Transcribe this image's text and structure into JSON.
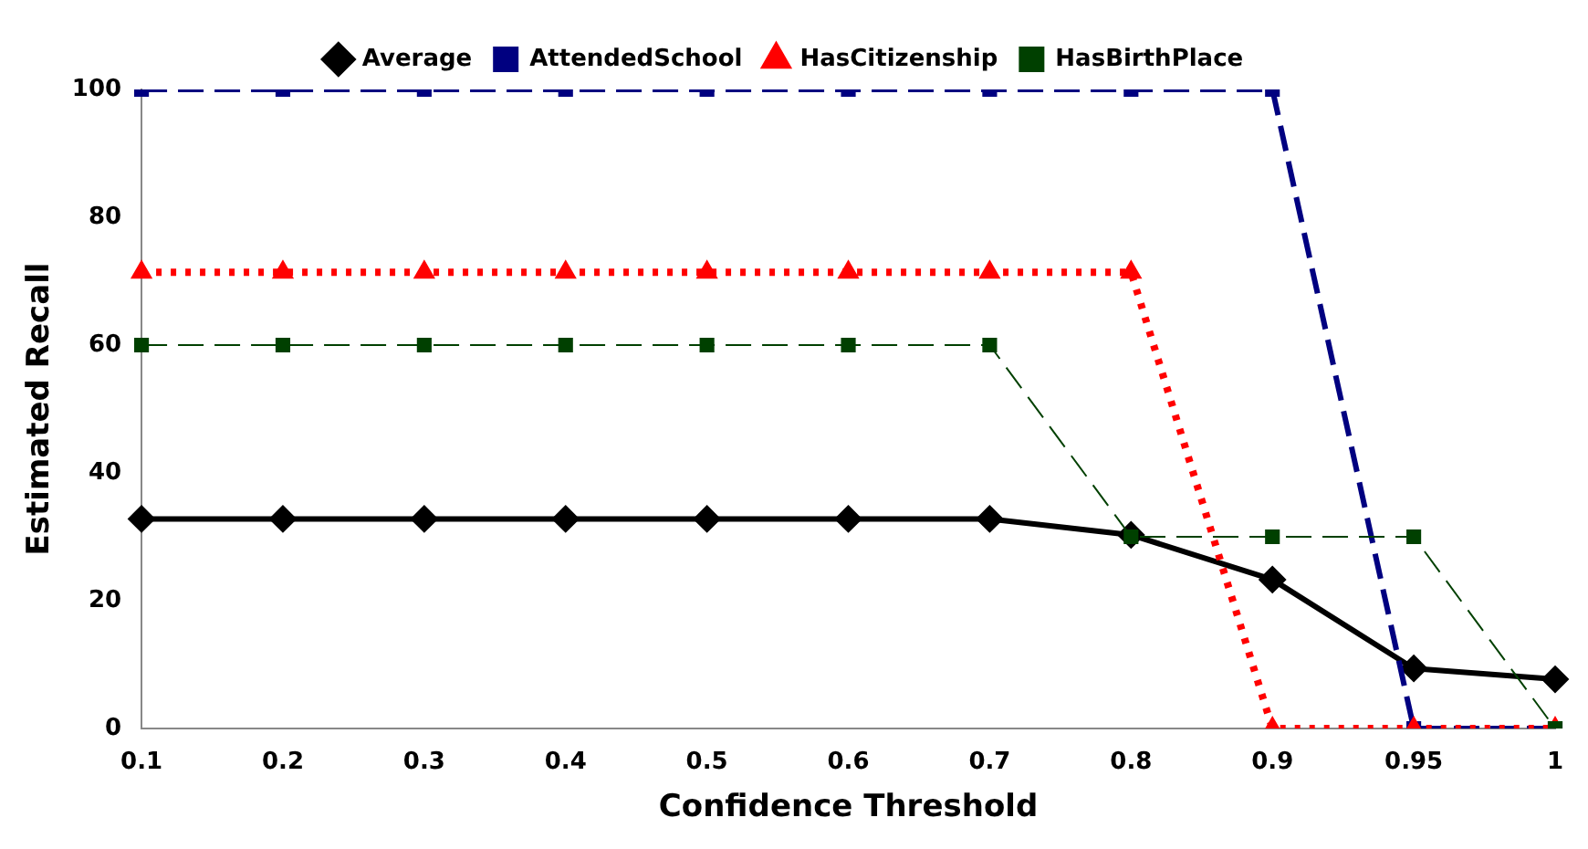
{
  "chart_data": {
    "type": "line",
    "xlabel": "Confidence Threshold",
    "ylabel": "Estimated Recall",
    "categories": [
      "0.1",
      "0.2",
      "0.3",
      "0.4",
      "0.5",
      "0.6",
      "0.7",
      "0.8",
      "0.9",
      "0.95",
      "1"
    ],
    "series": [
      {
        "name": "Average",
        "color": "#000000",
        "marker": "diamond",
        "line_style": "solid",
        "values": [
          32.8,
          32.8,
          32.8,
          32.8,
          32.8,
          32.8,
          32.8,
          30.3,
          23.3,
          9.4,
          7.7
        ]
      },
      {
        "name": "AttendedSchool",
        "color": "#000080",
        "marker": "square",
        "line_style": "dashed",
        "values": [
          100,
          100,
          100,
          100,
          100,
          100,
          100,
          100,
          100,
          0,
          0
        ]
      },
      {
        "name": "HasCitizenship",
        "color": "#ff0000",
        "marker": "triangle",
        "line_style": "dotted",
        "values": [
          71.4,
          71.4,
          71.4,
          71.4,
          71.4,
          71.4,
          71.4,
          71.4,
          0,
          0,
          0
        ]
      },
      {
        "name": "HasBirthPlace",
        "color": "#004000",
        "marker": "square",
        "line_style": "dashed",
        "values": [
          60,
          60,
          60,
          60,
          60,
          60,
          60,
          30,
          30,
          30,
          0
        ]
      }
    ],
    "ylim": [
      0,
      100
    ],
    "yticks": [
      0,
      20,
      40,
      60,
      80,
      100
    ],
    "grid": false,
    "legend": "top"
  }
}
